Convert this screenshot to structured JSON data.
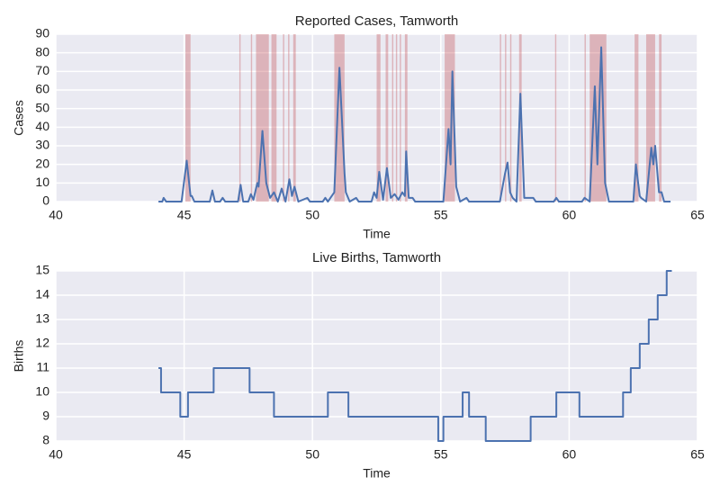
{
  "chart_data": [
    {
      "type": "line",
      "title": "Reported Cases, Tamworth",
      "xlabel": "Time",
      "ylabel": "Cases",
      "xlim": [
        40,
        65
      ],
      "xticks": [
        40,
        45,
        50,
        55,
        60,
        65
      ],
      "ylim": [
        0,
        90
      ],
      "yticks": [
        0,
        10,
        20,
        30,
        40,
        50,
        60,
        70,
        80,
        90
      ],
      "grid": true,
      "span_color": "#c44e52",
      "highlight_spans": [
        [
          45.05,
          45.25
        ],
        [
          47.15,
          47.2
        ],
        [
          47.6,
          47.65
        ],
        [
          47.8,
          48.3
        ],
        [
          48.4,
          48.6
        ],
        [
          48.85,
          48.9
        ],
        [
          49.05,
          49.1
        ],
        [
          49.25,
          49.35
        ],
        [
          50.85,
          51.25
        ],
        [
          52.5,
          52.65
        ],
        [
          52.85,
          52.95
        ],
        [
          53.1,
          53.15
        ],
        [
          53.25,
          53.3
        ],
        [
          53.4,
          53.45
        ],
        [
          53.6,
          53.7
        ],
        [
          55.15,
          55.55
        ],
        [
          57.3,
          57.35
        ],
        [
          57.5,
          57.55
        ],
        [
          57.7,
          57.75
        ],
        [
          58.05,
          58.15
        ],
        [
          59.45,
          59.5
        ],
        [
          60.6,
          60.65
        ],
        [
          60.8,
          61.45
        ],
        [
          62.55,
          62.7
        ],
        [
          63.0,
          63.35
        ],
        [
          63.5,
          63.6
        ]
      ],
      "series": [
        {
          "name": "Cases",
          "color": "#4c72b0",
          "x": [
            44.0,
            44.15,
            44.2,
            44.3,
            44.9,
            45.1,
            45.25,
            45.3,
            45.4,
            46.0,
            46.1,
            46.2,
            46.4,
            46.5,
            46.6,
            47.1,
            47.2,
            47.3,
            47.5,
            47.6,
            47.7,
            47.85,
            47.9,
            48.05,
            48.2,
            48.35,
            48.5,
            48.65,
            48.8,
            48.95,
            49.1,
            49.2,
            49.3,
            49.45,
            49.8,
            49.9,
            50.4,
            50.5,
            50.6,
            50.85,
            51.05,
            51.25,
            51.3,
            51.45,
            51.7,
            51.8,
            52.3,
            52.4,
            52.5,
            52.6,
            52.75,
            52.9,
            53.05,
            53.2,
            53.35,
            53.5,
            53.6,
            53.65,
            53.75,
            53.9,
            54.0,
            55.1,
            55.3,
            55.38,
            55.45,
            55.6,
            55.75,
            56.0,
            56.1,
            57.3,
            57.5,
            57.6,
            57.7,
            57.8,
            57.95,
            58.1,
            58.25,
            58.6,
            58.7,
            59.4,
            59.5,
            59.6,
            60.5,
            60.6,
            60.8,
            61.0,
            61.1,
            61.25,
            61.4,
            61.55,
            62.5,
            62.6,
            62.75,
            62.8,
            63.0,
            63.2,
            63.28,
            63.35,
            63.5,
            63.6,
            63.7,
            63.95
          ],
          "values": [
            0,
            0,
            2,
            0,
            0,
            22,
            3,
            3,
            0,
            0,
            6,
            0,
            0,
            2,
            0,
            0,
            9,
            0,
            0,
            4,
            1,
            10,
            8,
            38,
            10,
            2,
            5,
            0,
            7,
            0,
            12,
            3,
            8,
            0,
            2,
            0,
            0,
            2,
            0,
            5,
            72,
            15,
            5,
            0,
            2,
            0,
            0,
            5,
            2,
            16,
            1,
            18,
            2,
            4,
            1,
            5,
            3,
            27,
            2,
            2,
            0,
            0,
            39,
            20,
            70,
            8,
            0,
            2,
            0,
            0,
            15,
            21,
            5,
            2,
            0,
            58,
            2,
            2,
            0,
            0,
            2,
            0,
            0,
            2,
            0,
            62,
            20,
            83,
            10,
            0,
            0,
            20,
            3,
            2,
            0,
            29,
            20,
            30,
            5,
            5,
            0,
            0
          ]
        }
      ]
    },
    {
      "type": "line",
      "step": "post",
      "title": "Live Births, Tamworth",
      "xlabel": "Time",
      "ylabel": "Births",
      "xlim": [
        40,
        65
      ],
      "xticks": [
        40,
        45,
        50,
        55,
        60,
        65
      ],
      "ylim": [
        8,
        15
      ],
      "yticks": [
        8,
        9,
        10,
        11,
        12,
        13,
        14,
        15
      ],
      "grid": true,
      "series": [
        {
          "name": "Births",
          "color": "#4c72b0",
          "x": [
            44.0,
            44.1,
            44.85,
            45.15,
            46.15,
            47.55,
            48.5,
            50.6,
            51.4,
            54.9,
            55.1,
            55.85,
            56.1,
            56.75,
            58.5,
            59.5,
            60.4,
            62.1,
            62.4,
            62.75,
            63.1,
            63.45,
            63.8,
            64.0
          ],
          "values": [
            11,
            10,
            9,
            10,
            11,
            10,
            9,
            10,
            9,
            8,
            9,
            10,
            9,
            8,
            9,
            10,
            9,
            10,
            11,
            12,
            13,
            14,
            15,
            15
          ]
        }
      ]
    }
  ]
}
